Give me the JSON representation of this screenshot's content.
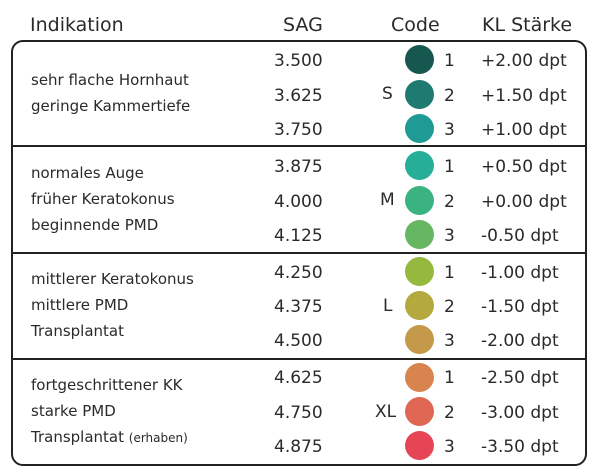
{
  "header": {
    "indikation": "Indikation",
    "sag": "SAG",
    "code": "Code",
    "kl": "KL Stärke"
  },
  "groups": [
    {
      "code": "S",
      "indications": [
        "sehr flache Hornhaut",
        "geringe Kammertiefe"
      ],
      "rows": [
        {
          "sag": "3.500",
          "num": "1",
          "kl": "+2.00 dpt",
          "color": "#16574f"
        },
        {
          "sag": "3.625",
          "num": "2",
          "kl": "+1.50 dpt",
          "color": "#1f7a72"
        },
        {
          "sag": "3.750",
          "num": "3",
          "kl": "+1.00 dpt",
          "color": "#1f9a95"
        }
      ]
    },
    {
      "code": "M",
      "indications": [
        "normales Auge",
        "früher Keratokonus",
        "beginnende PMD"
      ],
      "rows": [
        {
          "sag": "3.875",
          "num": "1",
          "kl": "+0.50 dpt",
          "color": "#27ae98"
        },
        {
          "sag": "4.000",
          "num": "2",
          "kl": "+0.00 dpt",
          "color": "#3bb381"
        },
        {
          "sag": "4.125",
          "num": "3",
          "kl": "-0.50 dpt",
          "color": "#66b662"
        }
      ]
    },
    {
      "code": "L",
      "indications": [
        "mittlerer Keratokonus",
        "mittlere PMD",
        "Transplantat"
      ],
      "rows": [
        {
          "sag": "4.250",
          "num": "1",
          "kl": "-1.00 dpt",
          "color": "#95b83e"
        },
        {
          "sag": "4.375",
          "num": "2",
          "kl": "-1.50 dpt",
          "color": "#b3a93f"
        },
        {
          "sag": "4.500",
          "num": "3",
          "kl": "-2.00 dpt",
          "color": "#c4994a"
        }
      ]
    },
    {
      "code": "XL",
      "indications": [
        "fortgeschrittener KK",
        "starke PMD",
        "Transplantat"
      ],
      "indication_small": "(erhaben)",
      "rows": [
        {
          "sag": "4.625",
          "num": "1",
          "kl": "-2.50 dpt",
          "color": "#d9834e"
        },
        {
          "sag": "4.750",
          "num": "2",
          "kl": "-3.00 dpt",
          "color": "#e06753"
        },
        {
          "sag": "4.875",
          "num": "3",
          "kl": "-3.50 dpt",
          "color": "#e64555"
        }
      ]
    }
  ]
}
